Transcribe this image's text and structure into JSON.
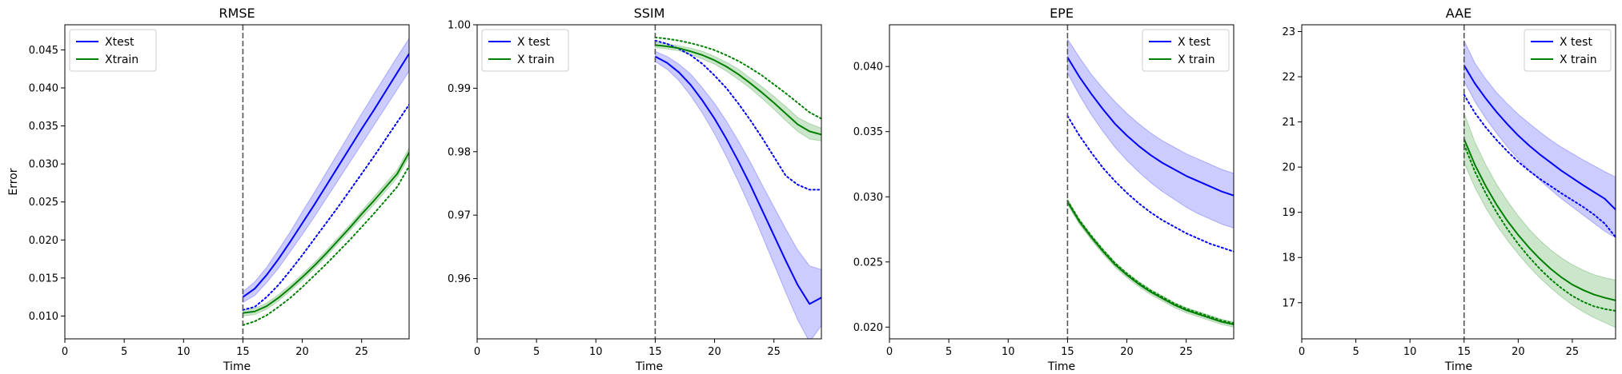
{
  "figure": {
    "background": "#ffffff"
  },
  "colors": {
    "test": "#0000ff",
    "train": "#008000",
    "vline": "#555555"
  },
  "chart_data": [
    {
      "type": "line",
      "title": "RMSE",
      "xlabel": "Time",
      "ylabel": "Error",
      "xlim": [
        0,
        29
      ],
      "ylim": [
        0.007,
        0.0483
      ],
      "xticks": [
        0,
        5,
        10,
        15,
        20,
        25
      ],
      "yticks": [
        0.01,
        0.015,
        0.02,
        0.025,
        0.03,
        0.035,
        0.04,
        0.045
      ],
      "ytick_labels": [
        "0.010",
        "0.015",
        "0.020",
        "0.025",
        "0.030",
        "0.035",
        "0.040",
        "0.045"
      ],
      "vline": 15,
      "legend": {
        "position": "top-left",
        "entries": [
          {
            "label": "Xtest",
            "series": "test"
          },
          {
            "label": "Xtrain",
            "series": "train"
          }
        ]
      },
      "x": [
        15,
        16,
        17,
        18,
        19,
        20,
        21,
        22,
        23,
        24,
        25,
        26,
        27,
        28,
        29
      ],
      "series": [
        {
          "name": "Xtest",
          "key": "test",
          "style": "solid",
          "values": [
            0.0125,
            0.0136,
            0.0154,
            0.0175,
            0.0198,
            0.0222,
            0.0246,
            0.0271,
            0.0296,
            0.0321,
            0.0346,
            0.037,
            0.0395,
            0.042,
            0.0445
          ],
          "band": {
            "lower": [
              0.0118,
              0.0127,
              0.0144,
              0.0163,
              0.0185,
              0.0207,
              0.023,
              0.0254,
              0.0278,
              0.0302,
              0.0326,
              0.035,
              0.0374,
              0.0398,
              0.0422
            ],
            "upper": [
              0.0132,
              0.0145,
              0.0164,
              0.0187,
              0.0211,
              0.0237,
              0.0262,
              0.0288,
              0.0314,
              0.034,
              0.0366,
              0.0391,
              0.0416,
              0.0441,
              0.0465
            ]
          }
        },
        {
          "key": "test",
          "style": "dotted",
          "values": [
            0.0108,
            0.0112,
            0.0125,
            0.0141,
            0.016,
            0.018,
            0.0201,
            0.0222,
            0.0243,
            0.0265,
            0.0287,
            0.0309,
            0.0332,
            0.0355,
            0.0378
          ]
        },
        {
          "name": "Xtrain",
          "key": "train",
          "style": "solid",
          "values": [
            0.0104,
            0.0106,
            0.0113,
            0.0124,
            0.0137,
            0.0151,
            0.0166,
            0.0182,
            0.0199,
            0.0216,
            0.0234,
            0.0251,
            0.0269,
            0.0287,
            0.0315
          ],
          "band": {
            "lower": [
              0.01,
              0.0102,
              0.0109,
              0.012,
              0.0133,
              0.0147,
              0.0162,
              0.0178,
              0.0195,
              0.0212,
              0.0229,
              0.0246,
              0.0264,
              0.0282,
              0.0309
            ],
            "upper": [
              0.0108,
              0.011,
              0.0117,
              0.0128,
              0.0141,
              0.0155,
              0.017,
              0.0186,
              0.0203,
              0.022,
              0.0238,
              0.0256,
              0.0274,
              0.0292,
              0.0321
            ]
          }
        },
        {
          "key": "train",
          "style": "dotted",
          "values": [
            0.0088,
            0.0093,
            0.0101,
            0.0112,
            0.0124,
            0.0138,
            0.0153,
            0.0168,
            0.0184,
            0.02,
            0.0217,
            0.0234,
            0.0252,
            0.027,
            0.0297
          ]
        }
      ]
    },
    {
      "type": "line",
      "title": "SSIM",
      "xlabel": "Time",
      "ylabel": "",
      "xlim": [
        0,
        29
      ],
      "ylim": [
        0.9505,
        1.0
      ],
      "xticks": [
        0,
        5,
        10,
        15,
        20,
        25
      ],
      "yticks": [
        0.96,
        0.97,
        0.98,
        0.99,
        1.0
      ],
      "ytick_labels": [
        "0.96",
        "0.97",
        "0.98",
        "0.99",
        "1.00"
      ],
      "vline": 15,
      "legend": {
        "position": "top-left",
        "entries": [
          {
            "label": "X test",
            "series": "test"
          },
          {
            "label": "X train",
            "series": "train"
          }
        ]
      },
      "x": [
        15,
        16,
        17,
        18,
        19,
        20,
        21,
        22,
        23,
        24,
        25,
        26,
        27,
        28,
        29
      ],
      "series": [
        {
          "name": "X test",
          "key": "test",
          "style": "solid",
          "values": [
            0.995,
            0.994,
            0.9925,
            0.9905,
            0.988,
            0.9852,
            0.982,
            0.9785,
            0.9748,
            0.9708,
            0.9668,
            0.9628,
            0.959,
            0.956,
            0.957
          ],
          "band": {
            "lower": [
              0.9942,
              0.993,
              0.9912,
              0.9888,
              0.986,
              0.9828,
              0.9792,
              0.9753,
              0.9712,
              0.9668,
              0.9623,
              0.9578,
              0.9535,
              0.95,
              0.9526
            ],
            "upper": [
              0.9958,
              0.995,
              0.9938,
              0.9922,
              0.99,
              0.9876,
              0.9848,
              0.9817,
              0.9784,
              0.9748,
              0.9713,
              0.9678,
              0.9645,
              0.962,
              0.9614
            ]
          }
        },
        {
          "key": "test",
          "style": "dotted",
          "values": [
            0.9975,
            0.997,
            0.9962,
            0.9952,
            0.9938,
            0.992,
            0.99,
            0.9876,
            0.985,
            0.9822,
            0.9792,
            0.9762,
            0.9748,
            0.974,
            0.974
          ]
        },
        {
          "name": "X train",
          "key": "train",
          "style": "solid",
          "values": [
            0.9968,
            0.9966,
            0.9963,
            0.9958,
            0.9952,
            0.9944,
            0.9934,
            0.9922,
            0.9908,
            0.9893,
            0.9877,
            0.986,
            0.9843,
            0.9832,
            0.9827
          ],
          "band": {
            "lower": [
              0.9964,
              0.9962,
              0.9959,
              0.9953,
              0.9946,
              0.9938,
              0.9927,
              0.9914,
              0.99,
              0.9884,
              0.9867,
              0.9849,
              0.9832,
              0.982,
              0.9817
            ],
            "upper": [
              0.9972,
              0.997,
              0.9967,
              0.9963,
              0.9958,
              0.995,
              0.9941,
              0.993,
              0.9916,
              0.9902,
              0.9887,
              0.9871,
              0.9854,
              0.9844,
              0.9837
            ]
          }
        },
        {
          "key": "train",
          "style": "dotted",
          "values": [
            0.998,
            0.9978,
            0.9975,
            0.9971,
            0.9966,
            0.996,
            0.9952,
            0.9943,
            0.9932,
            0.992,
            0.9906,
            0.9892,
            0.9877,
            0.9862,
            0.9852
          ]
        }
      ]
    },
    {
      "type": "line",
      "title": "EPE",
      "xlabel": "Time",
      "ylabel": "",
      "xlim": [
        0,
        29
      ],
      "ylim": [
        0.0191,
        0.0432
      ],
      "xticks": [
        0,
        5,
        10,
        15,
        20,
        25
      ],
      "yticks": [
        0.02,
        0.025,
        0.03,
        0.035,
        0.04
      ],
      "ytick_labels": [
        "0.020",
        "0.025",
        "0.030",
        "0.035",
        "0.040"
      ],
      "vline": 15,
      "legend": {
        "position": "top-right",
        "entries": [
          {
            "label": "X test",
            "series": "test"
          },
          {
            "label": "X train",
            "series": "train"
          }
        ]
      },
      "x": [
        15,
        16,
        17,
        18,
        19,
        20,
        21,
        22,
        23,
        24,
        25,
        26,
        27,
        28,
        29
      ],
      "series": [
        {
          "name": "X test",
          "key": "test",
          "style": "solid",
          "values": [
            0.0407,
            0.0392,
            0.0379,
            0.0367,
            0.0356,
            0.0347,
            0.0339,
            0.0332,
            0.0326,
            0.0321,
            0.0316,
            0.0312,
            0.0308,
            0.0304,
            0.0301
          ],
          "band": {
            "lower": [
              0.0395,
              0.0378,
              0.0363,
              0.035,
              0.0338,
              0.0328,
              0.0319,
              0.0311,
              0.0304,
              0.0298,
              0.0292,
              0.0287,
              0.0283,
              0.0279,
              0.0276
            ],
            "upper": [
              0.0421,
              0.0407,
              0.0394,
              0.0383,
              0.0373,
              0.0364,
              0.0356,
              0.0349,
              0.0343,
              0.0338,
              0.0333,
              0.0329,
              0.0325,
              0.0321,
              0.0318
            ]
          }
        },
        {
          "key": "test",
          "style": "dotted",
          "values": [
            0.0362,
            0.0347,
            0.0334,
            0.0322,
            0.0312,
            0.0303,
            0.0295,
            0.0288,
            0.0282,
            0.0277,
            0.0272,
            0.0268,
            0.0264,
            0.0261,
            0.0258
          ]
        },
        {
          "name": "X train",
          "key": "train",
          "style": "solid",
          "values": [
            0.0296,
            0.0281,
            0.0269,
            0.0258,
            0.0248,
            0.024,
            0.0233,
            0.0227,
            0.0222,
            0.0217,
            0.0213,
            0.021,
            0.0207,
            0.0204,
            0.0202
          ],
          "band": {
            "lower": [
              0.0294,
              0.0279,
              0.0267,
              0.0256,
              0.0246,
              0.0238,
              0.0231,
              0.0225,
              0.022,
              0.0215,
              0.0211,
              0.0208,
              0.0205,
              0.0202,
              0.02
            ],
            "upper": [
              0.0298,
              0.0283,
              0.0271,
              0.026,
              0.025,
              0.0242,
              0.0235,
              0.0229,
              0.0224,
              0.0219,
              0.0215,
              0.0212,
              0.0209,
              0.0206,
              0.0204
            ]
          }
        },
        {
          "key": "train",
          "style": "dotted",
          "values": [
            0.0297,
            0.0282,
            0.027,
            0.0259,
            0.0249,
            0.0241,
            0.0234,
            0.0228,
            0.0223,
            0.0218,
            0.0214,
            0.0211,
            0.0208,
            0.0205,
            0.0203
          ]
        }
      ]
    },
    {
      "type": "line",
      "title": "AAE",
      "xlabel": "Time",
      "ylabel": "",
      "xlim": [
        0,
        29
      ],
      "ylim": [
        16.2,
        23.15
      ],
      "xticks": [
        0,
        5,
        10,
        15,
        20,
        25
      ],
      "yticks": [
        17,
        18,
        19,
        20,
        21,
        22,
        23
      ],
      "ytick_labels": [
        "17",
        "18",
        "19",
        "20",
        "21",
        "22",
        "23"
      ],
      "vline": 15,
      "legend": {
        "position": "top-right",
        "entries": [
          {
            "label": "X test",
            "series": "test"
          },
          {
            "label": "X train",
            "series": "train"
          }
        ]
      },
      "x": [
        15,
        16,
        17,
        18,
        19,
        20,
        21,
        22,
        23,
        24,
        25,
        26,
        27,
        28,
        29
      ],
      "series": [
        {
          "name": "X test",
          "key": "test",
          "style": "solid",
          "values": [
            22.25,
            21.85,
            21.52,
            21.22,
            20.95,
            20.7,
            20.48,
            20.28,
            20.1,
            19.92,
            19.76,
            19.6,
            19.45,
            19.3,
            19.06
          ],
          "band": {
            "lower": [
              21.9,
              21.45,
              21.08,
              20.75,
              20.45,
              20.18,
              19.93,
              19.71,
              19.5,
              19.3,
              19.12,
              18.94,
              18.76,
              18.58,
              18.44
            ],
            "upper": [
              22.8,
              22.3,
              21.95,
              21.65,
              21.4,
              21.17,
              20.97,
              20.78,
              20.6,
              20.44,
              20.3,
              20.16,
              20.03,
              19.9,
              19.78
            ]
          }
        },
        {
          "key": "test",
          "style": "dotted",
          "values": [
            21.6,
            21.2,
            20.88,
            20.6,
            20.35,
            20.12,
            19.92,
            19.74,
            19.58,
            19.42,
            19.27,
            19.12,
            18.95,
            18.75,
            18.45
          ]
        },
        {
          "name": "X train",
          "key": "train",
          "style": "solid",
          "values": [
            20.62,
            20.05,
            19.58,
            19.17,
            18.81,
            18.5,
            18.22,
            17.97,
            17.75,
            17.56,
            17.4,
            17.28,
            17.18,
            17.11,
            17.05
          ],
          "band": {
            "lower": [
              20.1,
              19.55,
              19.1,
              18.72,
              18.38,
              18.08,
              17.8,
              17.55,
              17.33,
              17.13,
              16.95,
              16.8,
              16.67,
              16.56,
              16.45
            ],
            "upper": [
              21.2,
              20.55,
              20.05,
              19.62,
              19.25,
              18.92,
              18.63,
              18.38,
              18.17,
              17.99,
              17.84,
              17.72,
              17.62,
              17.55,
              17.5
            ]
          }
        },
        {
          "key": "train",
          "style": "dotted",
          "values": [
            20.5,
            19.9,
            19.42,
            19.0,
            18.63,
            18.3,
            18.01,
            17.75,
            17.52,
            17.32,
            17.15,
            17.02,
            16.92,
            16.86,
            16.82
          ]
        }
      ]
    }
  ]
}
